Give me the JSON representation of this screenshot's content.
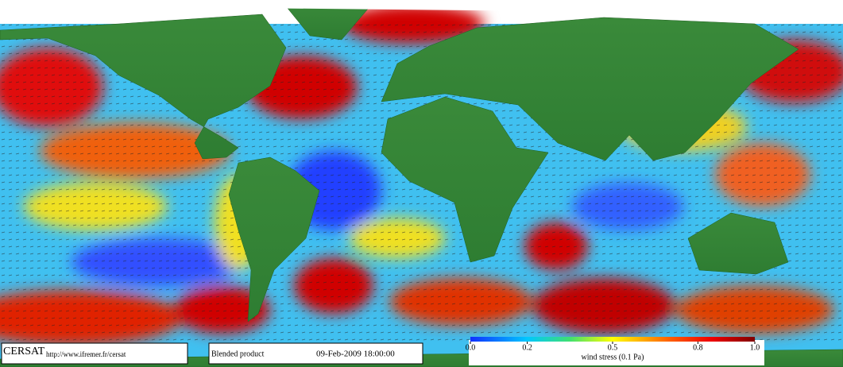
{
  "logo": "CERSAT",
  "url": "http://www.ifremer.fr/cersat",
  "product": "Blended product",
  "datetime": "09-Feb-2009 18:00:00",
  "colorbar": {
    "ticks": [
      {
        "value": 0,
        "label": "0.0"
      },
      0.2,
      0.5,
      0.8,
      {
        "value": 1,
        "label": "1.0"
      }
    ],
    "label": "wind stress (0.1 Pa)"
  }
}
